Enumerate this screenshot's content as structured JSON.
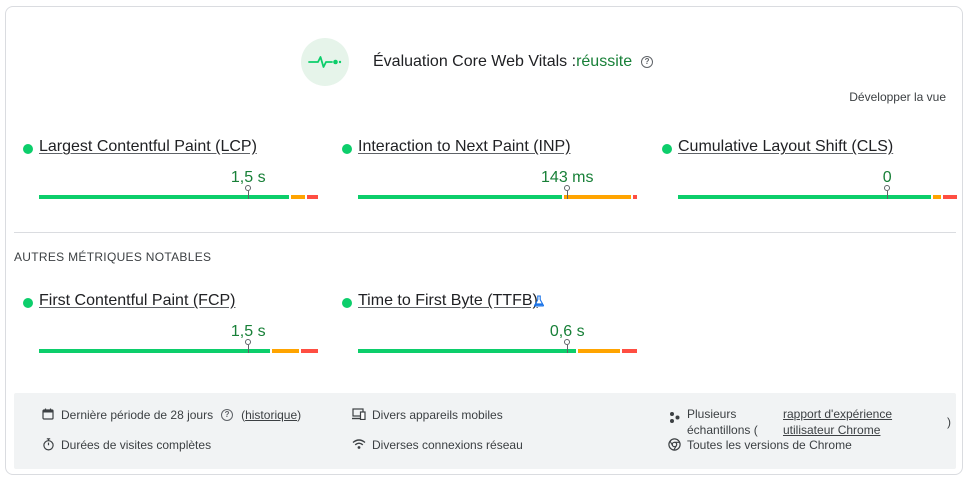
{
  "assessment": {
    "label": "Évaluation Core Web Vitals :",
    "status": "réussite",
    "help_icon": "help-icon",
    "badge_icon": "heartbeat-icon"
  },
  "expand_label": "Développer la vue",
  "colors": {
    "good": "#0cce6b",
    "needs_improvement": "#ffa400",
    "poor": "#ff4e42",
    "value_text": "#188038"
  },
  "core_metrics": [
    {
      "name": "Largest Contentful Paint (LCP)",
      "value": "1,5 s",
      "distribution": {
        "good": 0.905,
        "needs_improvement": 0.055,
        "poor": 0.04
      },
      "percentile_marker": 0.75
    },
    {
      "name": "Interaction to Next Paint (INP)",
      "value": "143 ms",
      "distribution": {
        "good": 0.74,
        "needs_improvement": 0.245,
        "poor": 0.015
      },
      "percentile_marker": 0.75
    },
    {
      "name": "Cumulative Layout Shift (CLS)",
      "value": "0",
      "distribution": {
        "good": 0.915,
        "needs_improvement": 0.035,
        "poor": 0.05
      },
      "percentile_marker": 0.75
    }
  ],
  "other_section_title": "AUTRES MÉTRIQUES NOTABLES",
  "other_metrics": [
    {
      "name": "First Contentful Paint (FCP)",
      "value": "1,5 s",
      "distribution": {
        "good": 0.835,
        "needs_improvement": 0.105,
        "poor": 0.06
      },
      "percentile_marker": 0.75
    },
    {
      "name": "Time to First Byte (TTFB)",
      "value": "0,6 s",
      "experimental_icon": "flask-icon",
      "distribution": {
        "good": 0.79,
        "needs_improvement": 0.155,
        "poor": 0.055
      },
      "percentile_marker": 0.75
    }
  ],
  "footer": {
    "period": {
      "icon": "calendar-icon",
      "text": "Dernière période de 28 jours",
      "help_icon": "help-icon",
      "link": "historique"
    },
    "visits": {
      "icon": "stopwatch-icon",
      "text": "Durées de visites complètes"
    },
    "devices": {
      "icon": "devices-icon",
      "text": "Divers appareils mobiles"
    },
    "network": {
      "icon": "wifi-icon",
      "text": "Diverses connexions réseau"
    },
    "samples": {
      "icon": "samples-icon",
      "text_line1": "Plusieurs",
      "text_line2": "échantillons (",
      "link_line1": "rapport d'expérience",
      "link_line2": "utilisateur Chrome",
      "close": ")"
    },
    "chrome": {
      "icon": "chrome-icon",
      "text": "Toutes les versions de Chrome"
    }
  }
}
